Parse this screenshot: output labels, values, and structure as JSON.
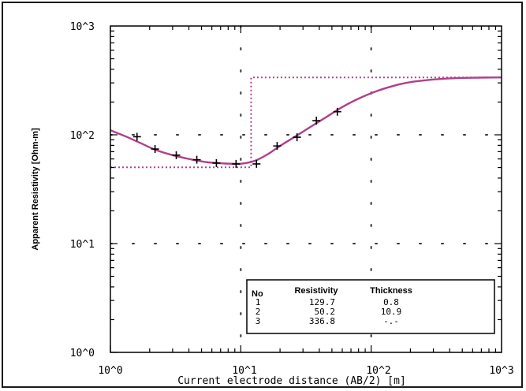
{
  "chart_data": {
    "type": "line",
    "xlabel": "Current electrode distance (AB/2) [m]",
    "ylabel": "Apparent Resistivity [Ohm-m]",
    "x_scale": "log",
    "y_scale": "log",
    "xlim": [
      1,
      1000
    ],
    "ylim": [
      1,
      1000
    ],
    "x_tick_labels": [
      "10^0",
      "10^1",
      "10^2",
      "10^3"
    ],
    "y_tick_labels": [
      "10^0",
      "10^1",
      "10^2",
      "10^3"
    ],
    "grid": "dotted at decades",
    "series": [
      {
        "style": "solid-magenta",
        "color": "#b0408a",
        "x": [
          1.0,
          1.3,
          1.7,
          2.2,
          3.0,
          4.0,
          5.5,
          7.5,
          9.5,
          11.0,
          13.0,
          16.0,
          20.0,
          26.0,
          33.0,
          45.0,
          60.0,
          80.0,
          110.0,
          150.0,
          200.0,
          280.0,
          400.0,
          550.0,
          750.0,
          1000.0
        ],
        "y": [
          110,
          97,
          84,
          73,
          65,
          60,
          56,
          54.5,
          54,
          55,
          58,
          66,
          79,
          96,
          115,
          145,
          180,
          215,
          252,
          283,
          305,
          320,
          330,
          334,
          336,
          337
        ]
      },
      {
        "style": "dotted-magenta",
        "color": "#b0408a",
        "x": [
          1,
          12.0,
          12.0,
          1000
        ],
        "y": [
          50.2,
          50.2,
          336.8,
          336.8
        ]
      },
      {
        "style": "plus-markers",
        "color": "#000000",
        "x": [
          1.6,
          2.2,
          3.2,
          4.6,
          6.5,
          9.2,
          13.2,
          19.0,
          27.0,
          38.0,
          55.0
        ],
        "y": [
          96,
          74,
          65,
          59,
          55,
          54,
          54,
          79,
          95,
          135,
          163
        ]
      }
    ]
  },
  "table": {
    "headers": {
      "no": "No",
      "resistivity": "Resistivity",
      "thickness": "Thickness"
    },
    "rows": [
      {
        "no": "1",
        "resistivity": "129.7",
        "thickness": "0.8"
      },
      {
        "no": "2",
        "resistivity": "50.2",
        "thickness": "10.9"
      },
      {
        "no": "3",
        "resistivity": "336.8",
        "thickness": "-.-"
      }
    ]
  }
}
